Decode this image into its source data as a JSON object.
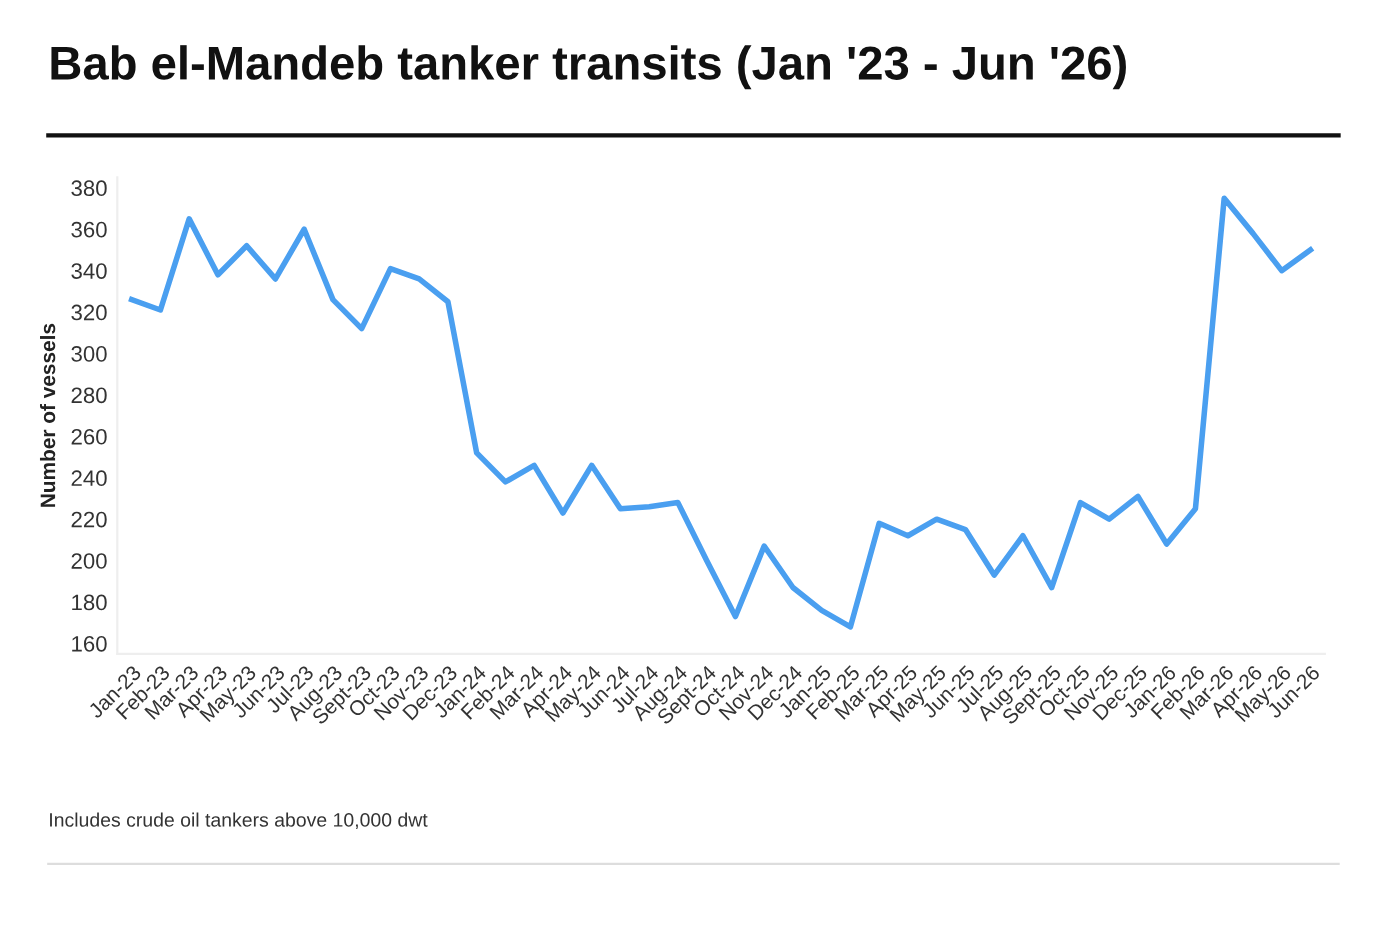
{
  "chart_data": {
    "type": "line",
    "title": "Bab el-Mandeb tanker transits (Jan '23 - Jun '26)",
    "ylabel": "Number of vessels",
    "categories": [
      "Jan-23",
      "Feb-23",
      "Mar-23",
      "Apr-23",
      "May-23",
      "Jun-23",
      "Jul-23",
      "Aug-23",
      "Sept-23",
      "Oct-23",
      "Nov-23",
      "Dec-23",
      "Jan-24",
      "Feb-24",
      "Mar-24",
      "Apr-24",
      "May-24",
      "Jun-24",
      "Jul-24",
      "Aug-24",
      "Sept-24",
      "Oct-24",
      "Nov-24",
      "Dec-24",
      "Jan-25",
      "Feb-25",
      "Mar-25",
      "Apr-25",
      "May-25",
      "Jun-25",
      "Jul-25",
      "Aug-25",
      "Sept-25",
      "Oct-25",
      "Nov-25",
      "Dec-25",
      "Jan-26",
      "Feb-26",
      "Mar-26",
      "Apr-26",
      "May-26",
      "Jun-26"
    ],
    "series": [
      {
        "color": "#4a9ff0",
        "values": [
          326,
          321,
          365,
          338,
          352,
          336,
          360,
          326,
          312,
          341,
          336,
          325,
          252,
          238,
          246,
          223,
          246,
          225,
          226,
          228,
          200,
          173,
          207,
          187,
          176,
          168,
          218,
          212,
          220,
          215,
          193,
          212,
          187,
          228,
          220,
          231,
          208,
          225,
          375,
          358,
          340,
          350
        ]
      }
    ],
    "ylim": [
      155,
      385
    ],
    "yticks": [
      160,
      180,
      200,
      220,
      240,
      260,
      280,
      300,
      320,
      340,
      360,
      380
    ],
    "grid": false,
    "legend": false,
    "marker": "none",
    "line_style": "solid",
    "annotations": [
      "Includes crude oil tankers above 10,000 dwt"
    ]
  }
}
